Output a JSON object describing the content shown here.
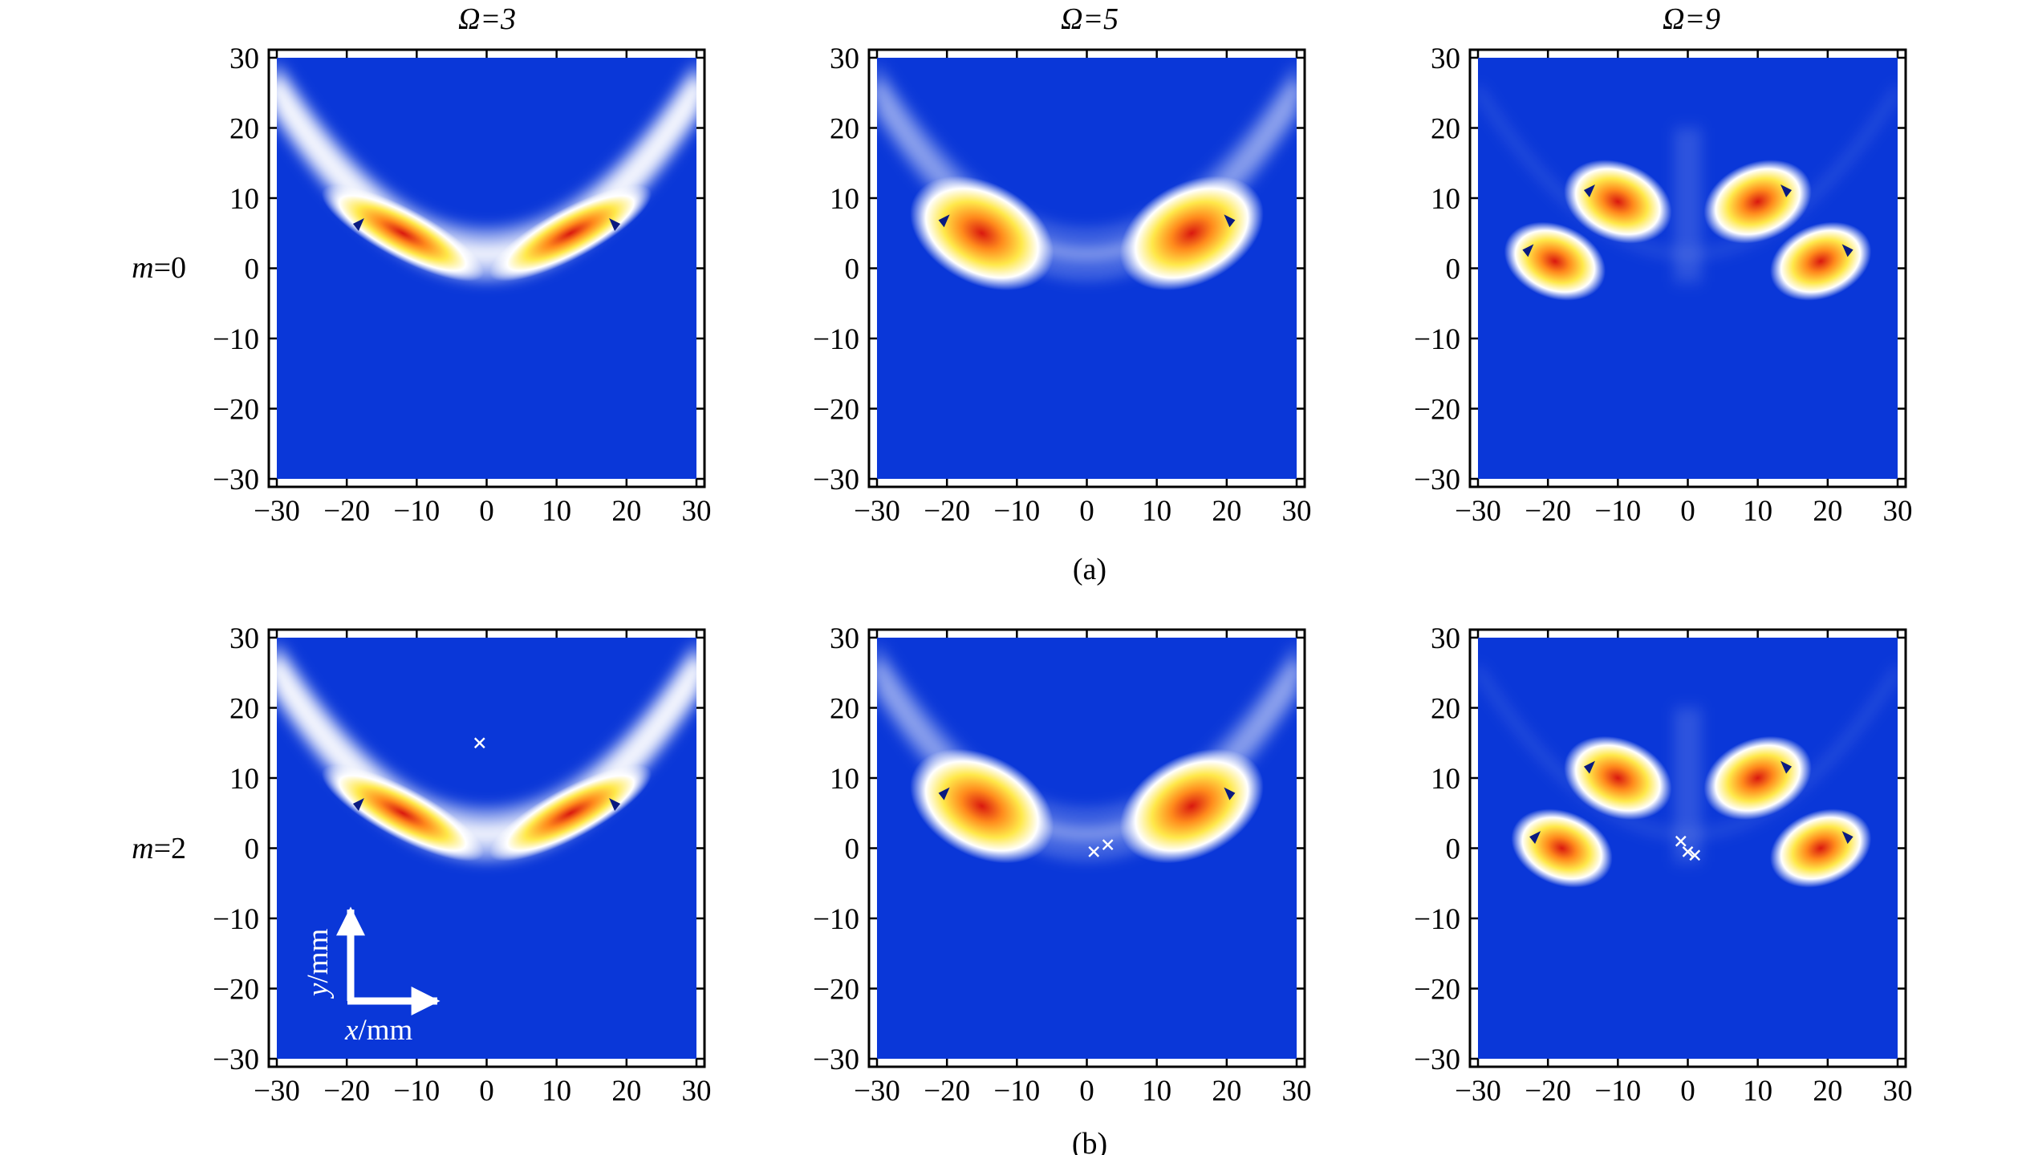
{
  "figure": {
    "column_titles": [
      "Ω=3",
      "Ω=5",
      "Ω=9"
    ],
    "row_labels": [
      {
        "var": "m",
        "value": "=0"
      },
      {
        "var": "m",
        "value": "=2"
      }
    ],
    "captions": [
      "(a)",
      "(b)"
    ],
    "overlay": {
      "y_var": "y",
      "y_unit": "/mm",
      "x_var": "x",
      "x_unit": "/mm"
    },
    "colors": {
      "background_field": "#0a37d8",
      "low": "#0a37d8",
      "mid": "#ffffff",
      "high_1": "#fff04a",
      "high_2": "#ff9020",
      "peak": "#d9180f",
      "arrow": "#0a1a80",
      "marker": "#ffffff"
    }
  },
  "chart_data": [
    {
      "type": "heatmap",
      "row": 0,
      "col": 0,
      "column_title": "Ω=3",
      "row_label": "m=0",
      "xlim": [
        -30,
        30
      ],
      "ylim": [
        -30,
        30
      ],
      "xticks": [
        -30,
        -20,
        -10,
        0,
        10,
        20,
        30
      ],
      "yticks": [
        -30,
        -20,
        -10,
        0,
        10,
        20,
        30
      ],
      "grid": false,
      "pattern": "V-shaped band",
      "hotspots": [
        {
          "x": -12,
          "y": 5,
          "intensity": 1.0
        },
        {
          "x": 12,
          "y": 5,
          "intensity": 1.0
        }
      ],
      "markers": []
    },
    {
      "type": "heatmap",
      "row": 0,
      "col": 1,
      "column_title": "Ω=5",
      "row_label": "m=0",
      "xlim": [
        -30,
        30
      ],
      "ylim": [
        -30,
        30
      ],
      "xticks": [
        -30,
        -20,
        -10,
        0,
        10,
        20,
        30
      ],
      "yticks": [
        -30,
        -20,
        -10,
        0,
        10,
        20,
        30
      ],
      "grid": false,
      "pattern": "two lobes",
      "hotspots": [
        {
          "x": -15,
          "y": 5,
          "intensity": 1.0
        },
        {
          "x": 15,
          "y": 5,
          "intensity": 1.0
        }
      ],
      "markers": []
    },
    {
      "type": "heatmap",
      "row": 0,
      "col": 2,
      "column_title": "Ω=9",
      "row_label": "m=0",
      "xlim": [
        -30,
        30
      ],
      "ylim": [
        -30,
        30
      ],
      "xticks": [
        -30,
        -20,
        -10,
        0,
        10,
        20,
        30
      ],
      "yticks": [
        -30,
        -20,
        -10,
        0,
        10,
        20,
        30
      ],
      "grid": false,
      "pattern": "four spots",
      "hotspots": [
        {
          "x": -10,
          "y": 9.5,
          "intensity": 1.0
        },
        {
          "x": 10,
          "y": 9.5,
          "intensity": 1.0
        },
        {
          "x": -19,
          "y": 1,
          "intensity": 0.85
        },
        {
          "x": 19,
          "y": 1,
          "intensity": 0.85
        }
      ],
      "markers": []
    },
    {
      "type": "heatmap",
      "row": 1,
      "col": 0,
      "column_title": "Ω=3",
      "row_label": "m=2",
      "xlim": [
        -30,
        30
      ],
      "ylim": [
        -30,
        30
      ],
      "xticks": [
        -30,
        -20,
        -10,
        0,
        10,
        20,
        30
      ],
      "yticks": [
        -30,
        -20,
        -10,
        0,
        10,
        20,
        30
      ],
      "grid": false,
      "pattern": "V-shaped band",
      "hotspots": [
        {
          "x": -12,
          "y": 5,
          "intensity": 1.0
        },
        {
          "x": 12,
          "y": 5,
          "intensity": 1.0
        }
      ],
      "markers": [
        {
          "x": -1,
          "y": 15
        }
      ]
    },
    {
      "type": "heatmap",
      "row": 1,
      "col": 1,
      "column_title": "Ω=5",
      "row_label": "m=2",
      "xlim": [
        -30,
        30
      ],
      "ylim": [
        -30,
        30
      ],
      "xticks": [
        -30,
        -20,
        -10,
        0,
        10,
        20,
        30
      ],
      "yticks": [
        -30,
        -20,
        -10,
        0,
        10,
        20,
        30
      ],
      "grid": false,
      "pattern": "two lobes",
      "hotspots": [
        {
          "x": -15,
          "y": 6,
          "intensity": 1.0
        },
        {
          "x": 15,
          "y": 6,
          "intensity": 1.0
        }
      ],
      "markers": [
        {
          "x": 1,
          "y": -0.5
        },
        {
          "x": 3,
          "y": 0.5
        }
      ]
    },
    {
      "type": "heatmap",
      "row": 1,
      "col": 2,
      "column_title": "Ω=9",
      "row_label": "m=2",
      "xlim": [
        -30,
        30
      ],
      "ylim": [
        -30,
        30
      ],
      "xticks": [
        -30,
        -20,
        -10,
        0,
        10,
        20,
        30
      ],
      "yticks": [
        -30,
        -20,
        -10,
        0,
        10,
        20,
        30
      ],
      "grid": false,
      "pattern": "four spots",
      "hotspots": [
        {
          "x": -10,
          "y": 10,
          "intensity": 1.0
        },
        {
          "x": 10,
          "y": 10,
          "intensity": 1.0
        },
        {
          "x": -18,
          "y": 0,
          "intensity": 0.85
        },
        {
          "x": 19,
          "y": 0,
          "intensity": 0.85
        }
      ],
      "markers": [
        {
          "x": -1,
          "y": 1
        },
        {
          "x": 0,
          "y": -0.5
        },
        {
          "x": 1,
          "y": -1
        }
      ]
    }
  ]
}
